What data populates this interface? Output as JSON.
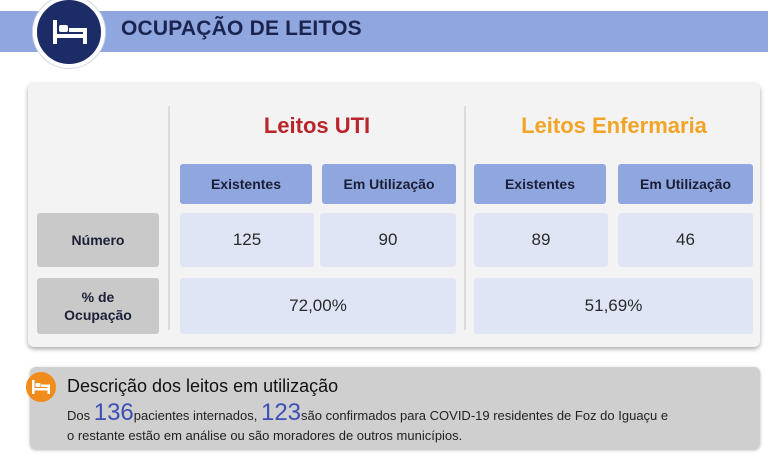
{
  "header": {
    "title": "OCUPAÇÃO DE LEITOS",
    "icon": "bed-icon"
  },
  "uti": {
    "title": "Leitos UTI",
    "existentes_label": "Existentes",
    "utilizacao_label": "Em Utilização",
    "existentes_value": "125",
    "utilizacao_value": "90",
    "ocupacao": "72,00%"
  },
  "enfermaria": {
    "title": "Leitos Enfermaria",
    "existentes_label": "Existentes",
    "utilizacao_label": "Em Utilização",
    "existentes_value": "89",
    "utilizacao_value": "46",
    "ocupacao": "51,69%"
  },
  "rows": {
    "numero_label": "Número",
    "ocupacao_label_1": "% de",
    "ocupacao_label_2": "Ocupação"
  },
  "description": {
    "title": "Descrição dos leitos em utilização",
    "icon": "bed-icon",
    "prefix": "Dos ",
    "internados": "136",
    "internados_text": "pacientes internados, ",
    "confirmados": "123",
    "confirmados_text": "são confirmados para COVID-19 residentes de Foz do Iguaçu e",
    "line2": "o restante estão em análise ou são moradores de outros municípios."
  },
  "colors": {
    "header_bar": "#8fa7de",
    "header_circle": "#1c2c66",
    "uti_title": "#b8262b",
    "enfermaria_title": "#f2a427",
    "description_icon": "#f08c1c"
  }
}
